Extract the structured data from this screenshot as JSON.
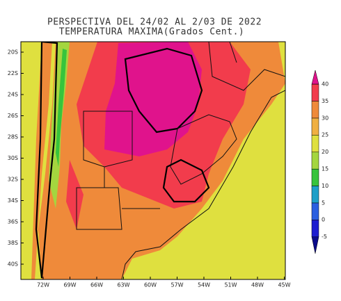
{
  "header": {
    "title": "PERSPECTIVA DEL 24/02 AL 2/03 DE 2022",
    "subtitle": "TEMPERATURA MAXIMA(Grados Cent.)"
  },
  "map": {
    "latitudes": [
      "20S",
      "22S",
      "24S",
      "26S",
      "28S",
      "30S",
      "32S",
      "34S",
      "36S",
      "38S",
      "40S"
    ],
    "longitudes": [
      "72W",
      "69W",
      "66W",
      "63W",
      "60W",
      "57W",
      "54W",
      "51W",
      "48W",
      "45W"
    ]
  },
  "colorbar": {
    "labels": [
      "40",
      "35",
      "30",
      "25",
      "20",
      "15",
      "10",
      "5",
      "0",
      "-5"
    ],
    "colors": [
      "#e0138c",
      "#f23c4c",
      "#ef8a3a",
      "#f0b042",
      "#dfe03f",
      "#a4d63f",
      "#37c43c",
      "#1e9fc8",
      "#2a5fe0",
      "#1c1cd0",
      "#0a0a8a"
    ]
  }
}
